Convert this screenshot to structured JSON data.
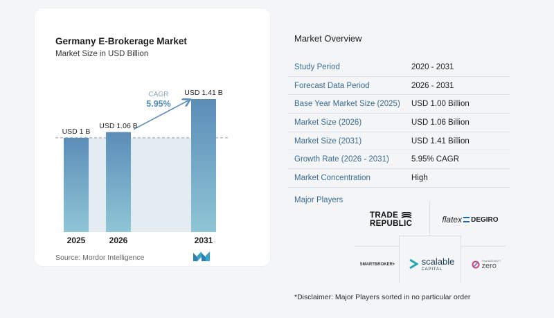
{
  "chart_data": {
    "type": "bar",
    "title": "Germany E-Brokerage Market",
    "subtitle": "Market Size in USD Billion",
    "categories": [
      "2025",
      "2026",
      "2031"
    ],
    "values": [
      1.0,
      1.06,
      1.41
    ],
    "value_labels": [
      "USD 1 B",
      "USD 1.06 B",
      "USD 1.41 B"
    ],
    "ylim": [
      0,
      1.41
    ],
    "cagr_label": "CAGR",
    "cagr_value": "5.95%",
    "grid": false,
    "colors": {
      "bar_top": "#5b8db8",
      "bar_bottom": "#8ec6d6",
      "band": "#e3ecf3",
      "arrow": "#5b8db8"
    }
  },
  "source": "Source:  Mordor Intelligence",
  "overview": {
    "title": "Market Overview",
    "rows": [
      {
        "label": "Study Period",
        "value": "2020 - 2031"
      },
      {
        "label": "Forecast Data Period",
        "value": "2026 - 2031"
      },
      {
        "label": "Base Year Market Size (2025)",
        "value": "USD 1.00 Billion"
      },
      {
        "label": "Market Size (2026)",
        "value": "USD 1.06 Billion"
      },
      {
        "label": "Market Size (2031)",
        "value": "USD 1.41 Billion"
      },
      {
        "label": "Growth Rate (2026 - 2031)",
        "value": "5.95% CAGR"
      },
      {
        "label": "Market Concentration",
        "value": "High"
      }
    ]
  },
  "players": {
    "title": "Major Players",
    "logos": {
      "trade_republic_1": "TRADE",
      "trade_republic_2": "REPUBLIC",
      "flatex": "flatex",
      "degiro": "DEGIRO",
      "smartbroker": "SMARTBROKER+",
      "scalable": "scalable",
      "scalable_sub": "CAPITAL",
      "zero": "zero",
      "zero_sub": "FINANZENNET"
    }
  },
  "disclaimer": "*Disclaimer: Major Players sorted in no particular order"
}
